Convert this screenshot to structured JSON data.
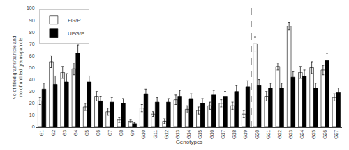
{
  "chart_data": {
    "type": "bar",
    "categories": [
      "G1",
      "G2",
      "G3",
      "G4",
      "G5",
      "G6",
      "G7",
      "G8",
      "G9",
      "G10",
      "G11",
      "G12",
      "G13",
      "G14",
      "G15",
      "G16",
      "G17",
      "G18",
      "G19",
      "G20",
      "G21",
      "G22",
      "G23",
      "G24",
      "G25",
      "G26",
      "G27"
    ],
    "series": [
      {
        "name": "FG/P",
        "color": "white",
        "values": [
          22,
          55,
          46,
          49,
          17,
          26,
          13,
          6,
          5,
          16,
          11,
          5,
          23,
          15,
          14,
          18,
          20,
          18,
          11,
          70,
          26,
          51,
          85,
          46,
          50,
          48,
          25
        ],
        "errors": [
          3,
          5,
          5,
          5,
          3,
          4,
          3,
          2,
          1,
          3,
          2,
          2,
          4,
          3,
          3,
          3,
          3,
          3,
          3,
          6,
          4,
          3,
          3,
          5,
          5,
          4,
          3
        ]
      },
      {
        "name": "UFG/P",
        "color": "black",
        "values": [
          32,
          36,
          38,
          62,
          38,
          22,
          21,
          20,
          3,
          28,
          21,
          21,
          26,
          24,
          20,
          27,
          26,
          30,
          34,
          35,
          33,
          33,
          42,
          43,
          33,
          56,
          29
        ],
        "errors": [
          5,
          7,
          7,
          7,
          5,
          4,
          4,
          4,
          1,
          4,
          4,
          3,
          5,
          4,
          4,
          4,
          4,
          5,
          5,
          5,
          4,
          4,
          5,
          5,
          4,
          6,
          4
        ]
      }
    ],
    "ylabel": "No of filled grains/panicle and\n no of unfilled grains/panicle",
    "xlabel": "Genotypes",
    "ylim": [
      0,
      100
    ],
    "yticks": [
      0,
      10,
      20,
      30,
      40,
      50,
      60,
      70,
      80,
      90,
      100
    ],
    "vline_x": 18.5,
    "legend": "upper left",
    "grid": false
  }
}
